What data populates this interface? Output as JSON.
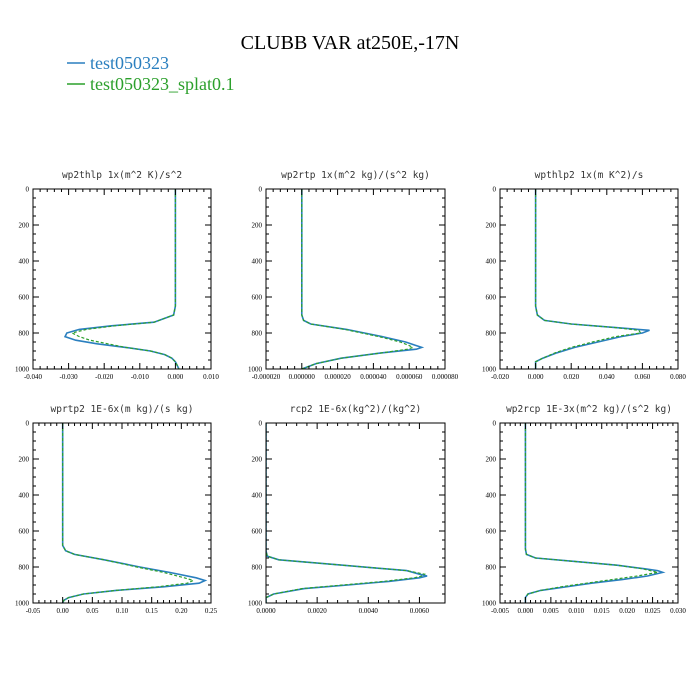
{
  "title": "CLUBB VAR at250E,-17N",
  "legend": [
    {
      "label": "test050323",
      "color": "#2a7fbf",
      "dash": "solid"
    },
    {
      "label": "test050323_splat0.1",
      "color": "#2ca02c",
      "dash": "dashed"
    }
  ],
  "chart_data": [
    {
      "type": "line",
      "title": "wp2thlp   1x(m^2 K)/s^2",
      "xlim": [
        -0.04,
        0.01
      ],
      "xticks": [
        -0.04,
        -0.03,
        -0.02,
        -0.01,
        0.0,
        0.01
      ],
      "xticklabels": [
        "-0.040",
        "-0.030",
        "-0.020",
        "-0.010",
        "0.000",
        "0.010"
      ],
      "ylim": [
        0,
        1000
      ],
      "yticks": [
        0,
        200,
        400,
        600,
        800,
        1000
      ],
      "yticklabels": [
        "0",
        "200",
        "400",
        "600",
        "800",
        "1000"
      ],
      "y": [
        0,
        650,
        700,
        740,
        760,
        780,
        800,
        820,
        840,
        860,
        880,
        900,
        920,
        940,
        960,
        980,
        1000
      ],
      "series": [
        {
          "name": "test050323",
          "values": [
            0.0,
            0.0,
            -0.0005,
            -0.006,
            -0.018,
            -0.027,
            -0.0305,
            -0.031,
            -0.028,
            -0.022,
            -0.014,
            -0.007,
            -0.003,
            -0.001,
            0.0,
            0.0005,
            0.001
          ]
        },
        {
          "name": "test050323_splat0.1",
          "values": [
            0.0,
            0.0,
            -0.0005,
            -0.006,
            -0.017,
            -0.025,
            -0.029,
            -0.027,
            -0.024,
            -0.019,
            -0.014,
            -0.007,
            -0.003,
            -0.001,
            0.0,
            0.0005,
            0.001
          ]
        }
      ]
    },
    {
      "type": "line",
      "title": "wp2rtp   1x(m^2 kg)/(s^2 kg)",
      "xlim": [
        -2e-05,
        8e-05
      ],
      "xticks": [
        -2e-05,
        0.0,
        2e-05,
        4e-05,
        6e-05,
        8e-05
      ],
      "xticklabels": [
        "-0.000020",
        "0.000000",
        "0.000020",
        "0.000040",
        "0.000060",
        "0.000080"
      ],
      "ylim": [
        0,
        1000
      ],
      "yticks": [
        0,
        200,
        400,
        600,
        800,
        1000
      ],
      "yticklabels": [
        "0",
        "200",
        "400",
        "600",
        "800",
        "1000"
      ],
      "y": [
        0,
        700,
        730,
        750,
        780,
        820,
        850,
        870,
        880,
        890,
        910,
        940,
        970,
        1000
      ],
      "series": [
        {
          "name": "test050323",
          "values": [
            0.0,
            0.0,
            1e-06,
            5e-06,
            2.5e-05,
            4.5e-05,
            5.8e-05,
            6.4e-05,
            6.7e-05,
            6.4e-05,
            4.5e-05,
            2.2e-05,
            8e-06,
            0.0
          ]
        },
        {
          "name": "test050323_splat0.1",
          "values": [
            0.0,
            0.0,
            1e-06,
            5e-06,
            2.4e-05,
            4.3e-05,
            5.5e-05,
            6e-05,
            6.2e-05,
            5.9e-05,
            4.5e-05,
            2.2e-05,
            8e-06,
            0.0
          ]
        }
      ]
    },
    {
      "type": "line",
      "title": "wpthlp2   1x(m K^2)/s",
      "xlim": [
        -0.02,
        0.08
      ],
      "xticks": [
        -0.02,
        0.0,
        0.02,
        0.04,
        0.06,
        0.08
      ],
      "xticklabels": [
        "-0.020",
        "0.000",
        "0.020",
        "0.040",
        "0.060",
        "0.080"
      ],
      "ylim": [
        0,
        1000
      ],
      "yticks": [
        0,
        200,
        400,
        600,
        800,
        1000
      ],
      "yticklabels": [
        "0",
        "200",
        "400",
        "600",
        "800",
        "1000"
      ],
      "y": [
        0,
        650,
        700,
        730,
        750,
        770,
        785,
        800,
        820,
        850,
        880,
        910,
        940,
        960,
        980,
        1000
      ],
      "series": [
        {
          "name": "test050323",
          "values": [
            0.0,
            0.0,
            0.001,
            0.005,
            0.02,
            0.045,
            0.064,
            0.06,
            0.048,
            0.035,
            0.022,
            0.012,
            0.004,
            0.0,
            0.0,
            0.0
          ]
        },
        {
          "name": "test050323_splat0.1",
          "values": [
            0.0,
            0.0,
            0.001,
            0.005,
            0.02,
            0.045,
            0.058,
            0.059,
            0.045,
            0.032,
            0.02,
            0.011,
            0.004,
            0.0,
            0.0,
            0.0
          ]
        }
      ]
    },
    {
      "type": "line",
      "title": "wprtp2   1E-6x(m kg)/(s kg)",
      "xlim": [
        -0.05,
        0.25
      ],
      "xticks": [
        -0.05,
        0.0,
        0.05,
        0.1,
        0.15,
        0.2,
        0.25
      ],
      "xticklabels": [
        "-0.05",
        "0.00",
        "0.05",
        "0.10",
        "0.15",
        "0.20",
        "0.25"
      ],
      "ylim": [
        0,
        1000
      ],
      "yticks": [
        0,
        200,
        400,
        600,
        800,
        1000
      ],
      "yticklabels": [
        "0",
        "200",
        "400",
        "600",
        "800",
        "1000"
      ],
      "y": [
        0,
        680,
        710,
        730,
        760,
        800,
        830,
        860,
        875,
        890,
        910,
        930,
        950,
        970,
        985,
        1000
      ],
      "series": [
        {
          "name": "test050323",
          "values": [
            0.0,
            0.0,
            0.005,
            0.02,
            0.07,
            0.13,
            0.18,
            0.225,
            0.24,
            0.23,
            0.17,
            0.09,
            0.035,
            0.01,
            0.002,
            0.0
          ]
        },
        {
          "name": "test050323_splat0.1",
          "values": [
            0.0,
            0.0,
            0.005,
            0.02,
            0.07,
            0.125,
            0.17,
            0.205,
            0.22,
            0.21,
            0.16,
            0.09,
            0.035,
            0.01,
            0.002,
            0.0
          ]
        }
      ]
    },
    {
      "type": "line",
      "title": "rcp2   1E-6x(kg^2)/(kg^2)",
      "xlim": [
        0.0,
        0.007
      ],
      "xticks": [
        0.0,
        0.002,
        0.004,
        0.006
      ],
      "xticklabels": [
        "0.0000",
        "0.0020",
        "0.0040",
        "0.0060"
      ],
      "ylim": [
        0,
        1000
      ],
      "yticks": [
        0,
        200,
        400,
        600,
        800,
        1000
      ],
      "yticklabels": [
        "0",
        "200",
        "400",
        "600",
        "800",
        "1000"
      ],
      "y": [
        0,
        710,
        740,
        760,
        790,
        820,
        840,
        850,
        860,
        880,
        900,
        920,
        950,
        970,
        980,
        1000
      ],
      "series": [
        {
          "name": "test050323",
          "values": [
            0.0,
            0.0,
            5e-05,
            0.0005,
            0.003,
            0.0055,
            0.006,
            0.0063,
            0.006,
            0.0048,
            0.0032,
            0.0015,
            0.0003,
            0.0,
            0.0,
            0.0
          ]
        },
        {
          "name": "test050323_splat0.1",
          "values": [
            0.0,
            0.0,
            5e-05,
            0.0005,
            0.003,
            0.0055,
            0.0062,
            0.0061,
            0.0058,
            0.0046,
            0.003,
            0.0014,
            0.0003,
            0.0,
            0.0,
            0.0
          ]
        }
      ]
    },
    {
      "type": "line",
      "title": "wp2rcp   1E-3x(m^2 kg)/(s^2 kg)",
      "xlim": [
        -0.005,
        0.03
      ],
      "xticks": [
        -0.005,
        0.0,
        0.005,
        0.01,
        0.015,
        0.02,
        0.025,
        0.03
      ],
      "xticklabels": [
        "-0.005",
        "0.000",
        "0.005",
        "0.010",
        "0.015",
        "0.020",
        "0.025",
        "0.030"
      ],
      "ylim": [
        0,
        1000
      ],
      "yticks": [
        0,
        200,
        400,
        600,
        800,
        1000
      ],
      "yticklabels": [
        "0",
        "200",
        "400",
        "600",
        "800",
        "1000"
      ],
      "y": [
        0,
        700,
        730,
        750,
        770,
        790,
        810,
        820,
        830,
        850,
        870,
        890,
        910,
        930,
        950,
        970,
        1000
      ],
      "series": [
        {
          "name": "test050323",
          "values": [
            0.0,
            0.0,
            0.0002,
            0.002,
            0.01,
            0.018,
            0.0235,
            0.026,
            0.027,
            0.024,
            0.019,
            0.013,
            0.008,
            0.003,
            0.0005,
            0.0,
            0.0
          ]
        },
        {
          "name": "test050323_splat0.1",
          "values": [
            0.0,
            0.0,
            0.0002,
            0.002,
            0.01,
            0.018,
            0.023,
            0.0245,
            0.026,
            0.022,
            0.017,
            0.012,
            0.007,
            0.003,
            0.0005,
            0.0,
            0.0
          ]
        }
      ]
    }
  ]
}
